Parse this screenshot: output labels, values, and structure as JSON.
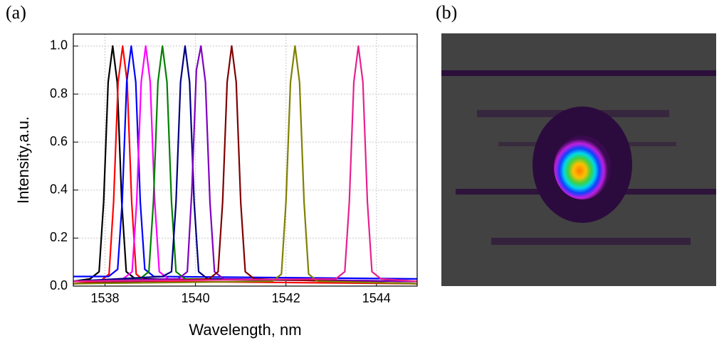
{
  "chart_data": {
    "type": "line",
    "panel_label": "(a)",
    "xlabel": "Wavelength, nm",
    "ylabel": "Intensity,a.u.",
    "xlim": [
      1537.3,
      1544.9
    ],
    "xticks": [
      1538,
      1540,
      1542,
      1544
    ],
    "ylim": [
      0,
      1.05
    ],
    "yticks": [
      {
        "value": 0,
        "label": "0.0"
      },
      0.2,
      0.4,
      0.6,
      0.8,
      {
        "value": 1,
        "label": "1.0"
      }
    ],
    "grid": true,
    "series": [
      {
        "color": "#000000",
        "x": [
          1537.3,
          1537.67,
          1537.87,
          1537.97,
          1538.07,
          1538.17,
          1538.27,
          1538.37,
          1538.47,
          1538.67,
          1544.9
        ],
        "values": [
          0.02,
          0.03,
          0.06,
          0.35,
          0.85,
          1.0,
          0.85,
          0.35,
          0.06,
          0.03,
          0.02
        ]
      },
      {
        "color": "#ff0000",
        "x": [
          1537.3,
          1537.89,
          1538.09,
          1538.19,
          1538.29,
          1538.39,
          1538.49,
          1538.59,
          1538.69,
          1538.89,
          1544.9
        ],
        "values": [
          0.01,
          0.02,
          0.05,
          0.35,
          0.85,
          1.0,
          0.85,
          0.35,
          0.05,
          0.02,
          0.01
        ]
      },
      {
        "color": "#0000ff",
        "x": [
          1537.3,
          1538.08,
          1538.28,
          1538.38,
          1538.48,
          1538.58,
          1538.68,
          1538.78,
          1538.88,
          1539.08,
          1544.9
        ],
        "values": [
          0.04,
          0.04,
          0.07,
          0.35,
          0.85,
          1.0,
          0.85,
          0.35,
          0.07,
          0.04,
          0.03
        ]
      },
      {
        "color": "#ff00ff",
        "x": [
          1537.3,
          1538.4,
          1538.6,
          1538.7,
          1538.8,
          1538.9,
          1539.0,
          1539.1,
          1539.2,
          1539.4,
          1544.9
        ],
        "values": [
          0.02,
          0.03,
          0.06,
          0.35,
          0.85,
          1.0,
          0.85,
          0.35,
          0.06,
          0.03,
          0.02
        ]
      },
      {
        "color": "#008000",
        "x": [
          1537.3,
          1538.77,
          1538.97,
          1539.07,
          1539.17,
          1539.27,
          1539.37,
          1539.47,
          1539.57,
          1539.77,
          1544.9
        ],
        "values": [
          0.02,
          0.03,
          0.06,
          0.35,
          0.85,
          1.0,
          0.85,
          0.35,
          0.06,
          0.03,
          0.02
        ]
      },
      {
        "color": "#000080",
        "x": [
          1537.3,
          1539.27,
          1539.47,
          1539.57,
          1539.67,
          1539.77,
          1539.87,
          1539.97,
          1540.07,
          1540.27,
          1544.9
        ],
        "values": [
          0.02,
          0.04,
          0.06,
          0.35,
          0.85,
          1.0,
          0.85,
          0.35,
          0.06,
          0.03,
          0.02
        ]
      },
      {
        "color": "#8000c0",
        "x": [
          1537.3,
          1539.62,
          1539.82,
          1539.92,
          1540.02,
          1540.12,
          1540.22,
          1540.32,
          1540.42,
          1540.62,
          1544.9
        ],
        "values": [
          0.02,
          0.03,
          0.06,
          0.4,
          0.9,
          1.0,
          0.85,
          0.35,
          0.06,
          0.03,
          0.02
        ]
      },
      {
        "color": "#800000",
        "x": [
          1537.3,
          1540.3,
          1540.5,
          1540.6,
          1540.7,
          1540.8,
          1540.9,
          1541.0,
          1541.1,
          1541.3,
          1544.9
        ],
        "values": [
          0.01,
          0.03,
          0.06,
          0.35,
          0.85,
          1.0,
          0.85,
          0.35,
          0.06,
          0.03,
          0.01
        ]
      },
      {
        "color": "#808000",
        "x": [
          1537.3,
          1541.7,
          1541.9,
          1542.0,
          1542.1,
          1542.2,
          1542.3,
          1542.4,
          1542.5,
          1542.7,
          1544.9
        ],
        "values": [
          0.01,
          0.02,
          0.05,
          0.35,
          0.85,
          1.0,
          0.85,
          0.35,
          0.05,
          0.02,
          0.01
        ]
      },
      {
        "color": "#e8208f",
        "x": [
          1537.3,
          1543.1,
          1543.3,
          1543.4,
          1543.5,
          1543.6,
          1543.7,
          1543.8,
          1543.9,
          1544.1,
          1544.9
        ],
        "values": [
          0.02,
          0.03,
          0.06,
          0.35,
          0.85,
          1.0,
          0.85,
          0.35,
          0.06,
          0.03,
          0.02
        ]
      }
    ]
  },
  "image_panel": {
    "label": "(b)"
  }
}
